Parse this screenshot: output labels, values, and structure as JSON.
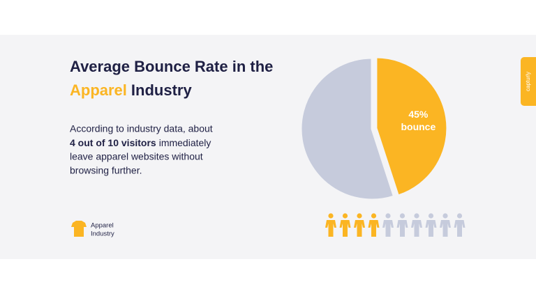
{
  "title": {
    "line1": "Average Bounce Rate in the",
    "highlight": "Apparel",
    "rest": "Industry"
  },
  "description": {
    "line1": "According to industry data, about",
    "bold": "4 out of 10 visitors",
    "line2_rest": "immediately",
    "line3": "leave apparel websites without",
    "line4": "browsing further."
  },
  "legend": {
    "line1": "Apparel",
    "line2": "Industry"
  },
  "side_tab": "capturly",
  "chart_data": [
    {
      "type": "pie",
      "categories": [
        "bounce",
        null
      ],
      "values": [
        45,
        55
      ],
      "value_labels": [
        "45%",
        null
      ],
      "colors": [
        "#fbb523",
        "#c6cbdc"
      ]
    },
    {
      "type": "pictogram",
      "values": [
        4,
        6
      ],
      "colors": [
        "#fbb523",
        "#c6cbdc"
      ]
    }
  ]
}
